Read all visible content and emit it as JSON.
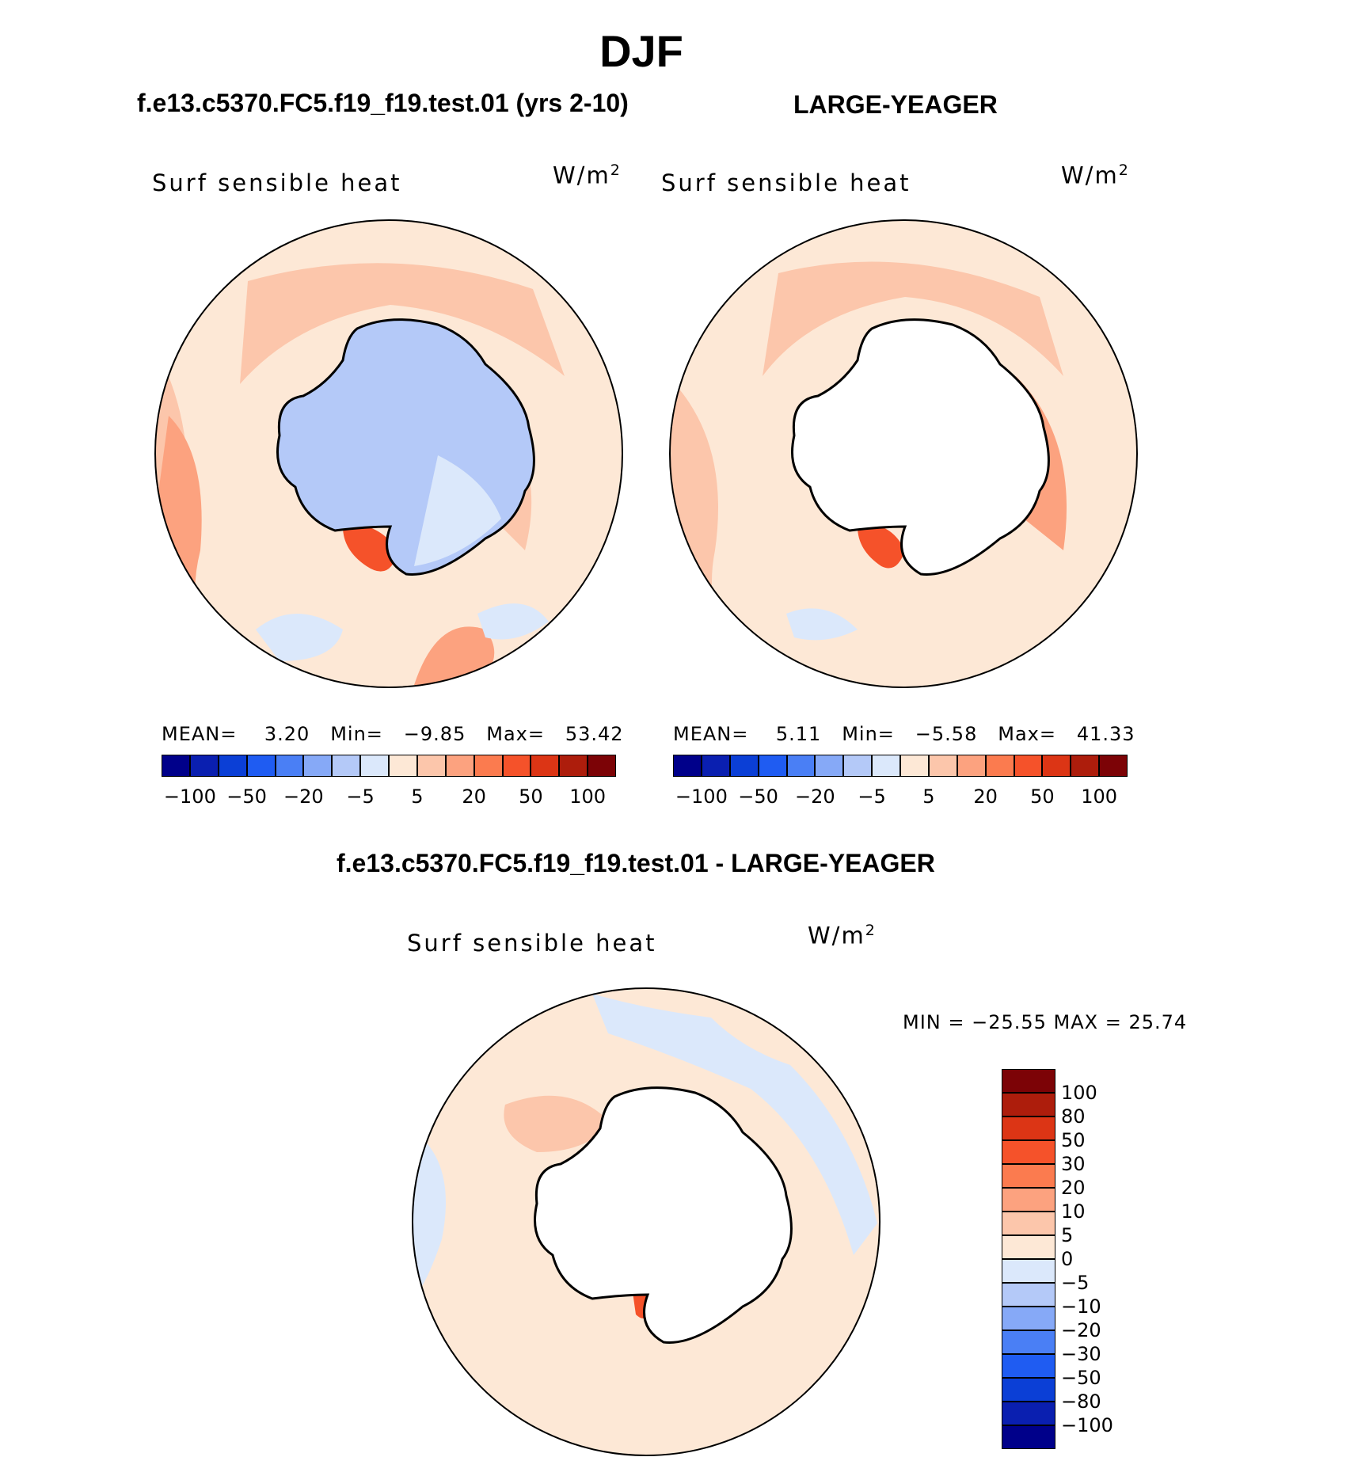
{
  "season": "DJF",
  "panels": {
    "test": {
      "title": "f.e13.c5370.FC5.f19_f19.test.01 (yrs 2-10)",
      "variable": "Surf sensible heat",
      "units_base": "W/m",
      "units_exp": "2",
      "mean_label": "MEAN=",
      "mean": "3.20",
      "min_label": "Min=",
      "min": "−9.85",
      "max_label": "Max=",
      "max": "53.42"
    },
    "obs": {
      "title": "LARGE-YEAGER",
      "variable": "Surf sensible heat",
      "units_base": "W/m",
      "units_exp": "2",
      "mean_label": "MEAN=",
      "mean": "5.11",
      "min_label": "Min=",
      "min": "−5.58",
      "max_label": "Max=",
      "max": "41.33"
    },
    "diff": {
      "title": "f.e13.c5370.FC5.f19_f19.test.01 - LARGE-YEAGER",
      "variable": "Surf sensible heat",
      "units_base": "W/m",
      "units_exp": "2",
      "minmax": "MIN = −25.55 MAX =   25.74"
    }
  },
  "colorbar_top": {
    "colors": [
      "#00008a",
      "#0a1fb0",
      "#0b3fd6",
      "#1f5cf2",
      "#4a7ff5",
      "#86a9f7",
      "#b4c9f8",
      "#dbe8fb",
      "#fde8d6",
      "#fcc6ab",
      "#fca27f",
      "#fb7b4f",
      "#f5522a",
      "#dc3515",
      "#ad1d0c",
      "#7c0306"
    ],
    "ticks": [
      "−100",
      "−50",
      "−20",
      "−5",
      "5",
      "20",
      "50",
      "100"
    ]
  },
  "colorbar_diff": {
    "colors": [
      "#00008a",
      "#0a1fb0",
      "#0b3fd6",
      "#1f5cf2",
      "#4a7ff5",
      "#86a9f7",
      "#b4c9f8",
      "#dbe8fb",
      "#fde8d6",
      "#fcc6ab",
      "#fca27f",
      "#fb7b4f",
      "#f5522a",
      "#dc3515",
      "#ad1d0c",
      "#7c0306"
    ],
    "ticks": [
      "100",
      "80",
      "50",
      "30",
      "20",
      "10",
      "5",
      "0",
      "−5",
      "−10",
      "−20",
      "−30",
      "−50",
      "−80",
      "−100"
    ]
  },
  "map_colors": {
    "ocean_base": "#fde8d6",
    "warm_light": "#fcc6ab",
    "warm_mid": "#fca27f",
    "warm_strong": "#f5522a",
    "cool_light": "#dbe8fb",
    "cool_mid": "#b4c9f8",
    "land_blank": "#ffffff",
    "coast": "#000000"
  }
}
